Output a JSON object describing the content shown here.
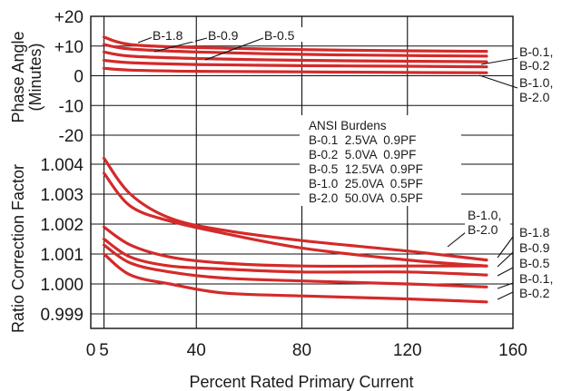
{
  "chart_data": [
    {
      "type": "line",
      "panel": "top",
      "ylabel": "Phase Angle (Minutes)",
      "xlim": [
        0,
        160
      ],
      "ylim": [
        -20,
        20
      ],
      "yticks": [
        "+20",
        "+10",
        "0",
        "-10",
        "-20"
      ],
      "grid": true,
      "series": [
        {
          "name": "B-1.8",
          "x": [
            5,
            15,
            40,
            80,
            120,
            150
          ],
          "y": [
            13,
            10.5,
            9.5,
            8.8,
            8.4,
            8.2
          ]
        },
        {
          "name": "B-0.9",
          "x": [
            5,
            15,
            40,
            80,
            120,
            150
          ],
          "y": [
            10.5,
            9,
            8,
            7.2,
            6.8,
            6.6
          ]
        },
        {
          "name": "B-0.5",
          "x": [
            5,
            15,
            40,
            80,
            120,
            150
          ],
          "y": [
            8,
            6.6,
            5.8,
            5.2,
            4.9,
            4.7
          ]
        },
        {
          "name": "B-0.1, B-0.2",
          "x": [
            5,
            15,
            40,
            80,
            120,
            150
          ],
          "y": [
            5.2,
            4.4,
            3.8,
            3.4,
            3.2,
            3.0
          ]
        },
        {
          "name": "B-1.0, B-2.0",
          "x": [
            5,
            15,
            40,
            80,
            120,
            150
          ],
          "y": [
            2.5,
            1.9,
            1.5,
            1.3,
            1.1,
            1.0
          ]
        }
      ],
      "annotations": [
        "B-1.8",
        "B-0.9",
        "B-0.5",
        "B-0.1,",
        "B-0.2",
        "B-1.0,",
        "B-2.0"
      ]
    },
    {
      "type": "line",
      "panel": "bottom",
      "xlabel": "Percent Rated Primary Current",
      "ylabel": "Ratio Correction Factor",
      "xlim": [
        0,
        160
      ],
      "ylim": [
        0.998,
        1.005
      ],
      "xticks": [
        "0",
        "5",
        "40",
        "80",
        "120",
        "160"
      ],
      "yticks": [
        "1.004",
        "1.003",
        "1.002",
        "1.001",
        "1.000",
        "0.999"
      ],
      "grid": true,
      "series": [
        {
          "name": "B-1.0, B-2.0 (upper)",
          "x": [
            5,
            15,
            30,
            50,
            80,
            120,
            150
          ],
          "y": [
            1.0042,
            1.003,
            1.0022,
            1.0018,
            1.00145,
            1.0011,
            1.0008
          ]
        },
        {
          "name": "B-1.0, B-2.0 (lower)",
          "x": [
            5,
            15,
            30,
            50,
            80,
            120,
            150
          ],
          "y": [
            1.0037,
            1.0026,
            1.0021,
            1.0017,
            1.0012,
            1.0008,
            1.0006
          ]
        },
        {
          "name": "B-1.8",
          "x": [
            5,
            15,
            30,
            50,
            80,
            120,
            150
          ],
          "y": [
            1.0019,
            1.0013,
            1.0009,
            1.0007,
            1.0006,
            1.0006,
            1.0006
          ]
        },
        {
          "name": "B-0.9",
          "x": [
            5,
            15,
            30,
            50,
            80,
            120,
            150
          ],
          "y": [
            1.0015,
            1.0009,
            1.0006,
            1.0005,
            1.0004,
            1.0004,
            1.0003
          ]
        },
        {
          "name": "B-0.5",
          "x": [
            5,
            15,
            30,
            50,
            80,
            120,
            150
          ],
          "y": [
            1.0013,
            1.0007,
            1.0004,
            1.0002,
            1.0001,
            1.0,
            0.9999
          ]
        },
        {
          "name": "B-0.1, B-0.2",
          "x": [
            5,
            15,
            30,
            50,
            80,
            120,
            150
          ],
          "y": [
            1.001,
            1.0003,
            1.0,
            0.9997,
            0.9996,
            0.9995,
            0.9994
          ]
        }
      ],
      "annotations": [
        "B-1.0,",
        "B-2.0",
        "B-1.8",
        "B-0.9",
        "B-0.5",
        "B-0.1,",
        "B-0.2"
      ]
    }
  ],
  "legend": {
    "title": "ANSI Burdens",
    "rows": [
      "B-0.1  2.5VA  0.9PF",
      "B-0.2  5.0VA  0.9PF",
      "B-0.5  12.5VA  0.9PF",
      "B-1.0  25.0VA  0.5PF",
      "B-2.0  50.0VA  0.5PF"
    ]
  },
  "colors": {
    "curve": "#d42a2a",
    "grid": "#111111",
    "text": "#1a1a1a"
  }
}
